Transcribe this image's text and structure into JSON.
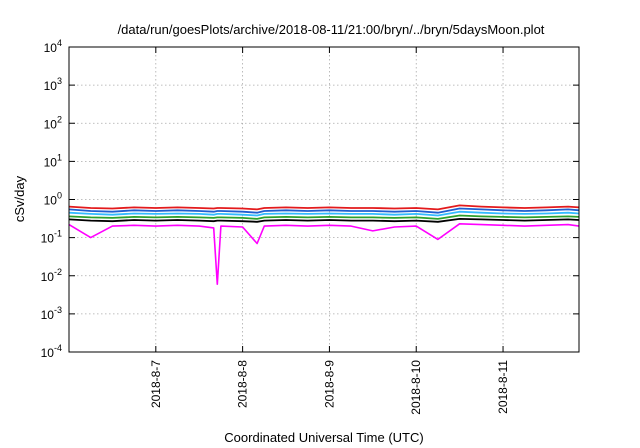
{
  "chart_data": {
    "type": "line",
    "title": "/data/run/goesPlots/archive/2018-08-11/21:00/bryn/../bryn/5daysMoon.plot",
    "xlabel": "Coordinated Universal Time (UTC)",
    "ylabel": "cSv/day",
    "yscale": "log",
    "ylim": [
      0.0001,
      10000
    ],
    "xlim": [
      "2018-08-06T00:00",
      "2018-08-11T21:00"
    ],
    "grid": true,
    "legend": "none",
    "y_ticks": [
      {
        "base": "10",
        "exp": "-4",
        "value": 0.0001
      },
      {
        "base": "10",
        "exp": "-3",
        "value": 0.001
      },
      {
        "base": "10",
        "exp": "-2",
        "value": 0.01
      },
      {
        "base": "10",
        "exp": "-1",
        "value": 0.1
      },
      {
        "base": "10",
        "exp": "0",
        "value": 1
      },
      {
        "base": "10",
        "exp": "1",
        "value": 10
      },
      {
        "base": "10",
        "exp": "2",
        "value": 100
      },
      {
        "base": "10",
        "exp": "3",
        "value": 1000
      },
      {
        "base": "10",
        "exp": "4",
        "value": 10000
      }
    ],
    "x_ticks": [
      {
        "label": "2018-8-7",
        "value": "2018-08-07T00:00"
      },
      {
        "label": "2018-8-8",
        "value": "2018-08-08T00:00"
      },
      {
        "label": "2018-8-9",
        "value": "2018-08-09T00:00"
      },
      {
        "label": "2018-8-10",
        "value": "2018-08-10T00:00"
      },
      {
        "label": "2018-8-11",
        "value": "2018-08-11T00:00"
      }
    ],
    "x": [
      "2018-08-06T00:00",
      "2018-08-06T06:00",
      "2018-08-06T12:00",
      "2018-08-06T18:00",
      "2018-08-07T00:00",
      "2018-08-07T06:00",
      "2018-08-07T12:00",
      "2018-08-07T16:00",
      "2018-08-07T17:00",
      "2018-08-07T18:00",
      "2018-08-08T00:00",
      "2018-08-08T04:00",
      "2018-08-08T06:00",
      "2018-08-08T12:00",
      "2018-08-08T18:00",
      "2018-08-09T00:00",
      "2018-08-09T06:00",
      "2018-08-09T12:00",
      "2018-08-09T18:00",
      "2018-08-10T00:00",
      "2018-08-10T06:00",
      "2018-08-10T12:00",
      "2018-08-10T18:00",
      "2018-08-11T00:00",
      "2018-08-11T06:00",
      "2018-08-11T12:00",
      "2018-08-11T18:00",
      "2018-08-11T21:00"
    ],
    "series": [
      {
        "color": "#e31a1c",
        "values": [
          0.65,
          0.6,
          0.58,
          0.62,
          0.6,
          0.62,
          0.6,
          0.58,
          0.6,
          0.6,
          0.58,
          0.55,
          0.6,
          0.62,
          0.6,
          0.62,
          0.6,
          0.6,
          0.58,
          0.6,
          0.55,
          0.7,
          0.65,
          0.62,
          0.6,
          0.62,
          0.65,
          0.62
        ]
      },
      {
        "color": "#1f5fd0",
        "values": [
          0.55,
          0.5,
          0.48,
          0.52,
          0.5,
          0.52,
          0.5,
          0.48,
          0.5,
          0.5,
          0.48,
          0.45,
          0.5,
          0.52,
          0.5,
          0.52,
          0.5,
          0.5,
          0.48,
          0.5,
          0.45,
          0.58,
          0.55,
          0.52,
          0.5,
          0.52,
          0.55,
          0.52
        ]
      },
      {
        "color": "#33bbff",
        "values": [
          0.45,
          0.42,
          0.4,
          0.43,
          0.42,
          0.43,
          0.42,
          0.4,
          0.42,
          0.42,
          0.4,
          0.38,
          0.42,
          0.43,
          0.42,
          0.43,
          0.42,
          0.42,
          0.4,
          0.42,
          0.38,
          0.48,
          0.45,
          0.43,
          0.42,
          0.43,
          0.45,
          0.43
        ]
      },
      {
        "color": "#2ca02c",
        "values": [
          0.36,
          0.34,
          0.33,
          0.35,
          0.34,
          0.35,
          0.34,
          0.33,
          0.34,
          0.34,
          0.33,
          0.31,
          0.34,
          0.35,
          0.34,
          0.35,
          0.34,
          0.34,
          0.33,
          0.34,
          0.31,
          0.38,
          0.36,
          0.35,
          0.34,
          0.35,
          0.36,
          0.35
        ]
      },
      {
        "color": "#000000",
        "values": [
          0.3,
          0.28,
          0.27,
          0.29,
          0.28,
          0.29,
          0.28,
          0.27,
          0.28,
          0.28,
          0.27,
          0.26,
          0.28,
          0.29,
          0.28,
          0.29,
          0.28,
          0.28,
          0.27,
          0.28,
          0.26,
          0.31,
          0.3,
          0.29,
          0.28,
          0.29,
          0.3,
          0.29
        ]
      },
      {
        "color": "#ff00ff",
        "values": [
          0.22,
          0.1,
          0.2,
          0.21,
          0.2,
          0.21,
          0.2,
          0.18,
          0.006,
          0.2,
          0.19,
          0.07,
          0.2,
          0.21,
          0.2,
          0.21,
          0.2,
          0.15,
          0.19,
          0.2,
          0.09,
          0.23,
          0.22,
          0.21,
          0.2,
          0.21,
          0.22,
          0.2
        ]
      }
    ]
  }
}
